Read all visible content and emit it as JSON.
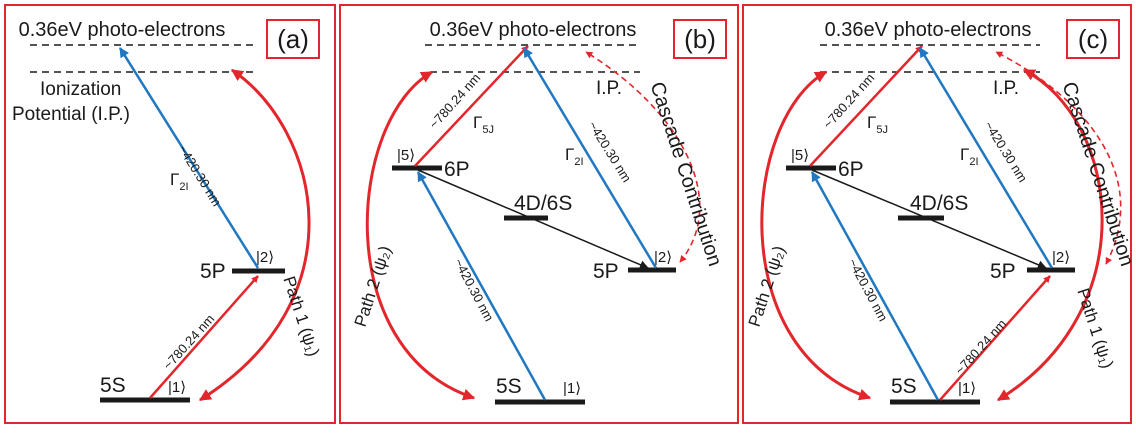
{
  "colors": {
    "red": "#e3262b",
    "blue": "#1f78c1",
    "black": "#1a1a1a",
    "frame": "#e3262b"
  },
  "panels": [
    {
      "tag": "(a)",
      "top_label": "0.36eV photo-electrons",
      "ip_label": [
        "Ionization",
        "Potential (I.P.)"
      ],
      "levels": {
        "s5": "5S",
        "p5": "5P"
      },
      "kets": {
        "k1": "|1⟩",
        "k2": "|2⟩"
      },
      "transitions": {
        "red_wl": "~780.24 nm",
        "blue_wl": "~420.30 nm",
        "gamma": "Γ",
        "gamma_sub": "2I"
      },
      "path": "Path 1 (ψ₁)"
    },
    {
      "tag": "(b)",
      "top_label": "0.36eV photo-electrons",
      "ip_label": "I.P.",
      "levels": {
        "p6": "6P",
        "d4": "4D/6S",
        "p5": "5P",
        "s5": "5S"
      },
      "kets": {
        "k5": "|5⟩",
        "k2": "|2⟩",
        "k1": "|1⟩"
      },
      "transitions": {
        "red_wl": "~780.24 nm",
        "gamma5": "Γ",
        "gamma5_sub": "5J",
        "blue_wl_upper": "~420.30 nm",
        "gamma2": "Γ",
        "gamma2_sub": "2I",
        "blue_wl_lower": "~420.30 nm"
      },
      "path": "Path 2 (ψ₂)",
      "cascade": "Cascade Contribution"
    },
    {
      "tag": "(c)",
      "top_label": "0.36eV photo-electrons",
      "ip_label": "I.P.",
      "levels": {
        "p6": "6P",
        "d4": "4D/6S",
        "p5": "5P",
        "s5": "5S"
      },
      "kets": {
        "k5": "|5⟩",
        "k2": "|2⟩",
        "k1": "|1⟩"
      },
      "transitions": {
        "red_wl_upper": "~780.24 nm",
        "gamma5": "Γ",
        "gamma5_sub": "5J",
        "blue_wl_upper": "~420.30 nm",
        "gamma2": "Γ",
        "gamma2_sub": "2I",
        "blue_wl_lower": "~420.30 nm",
        "red_wl_lower": "~780.24 nm"
      },
      "path_left": "Path 2 (ψ₂)",
      "path_right": "Path 1 (ψ₁)",
      "cascade": "Cascade Contribution"
    }
  ]
}
